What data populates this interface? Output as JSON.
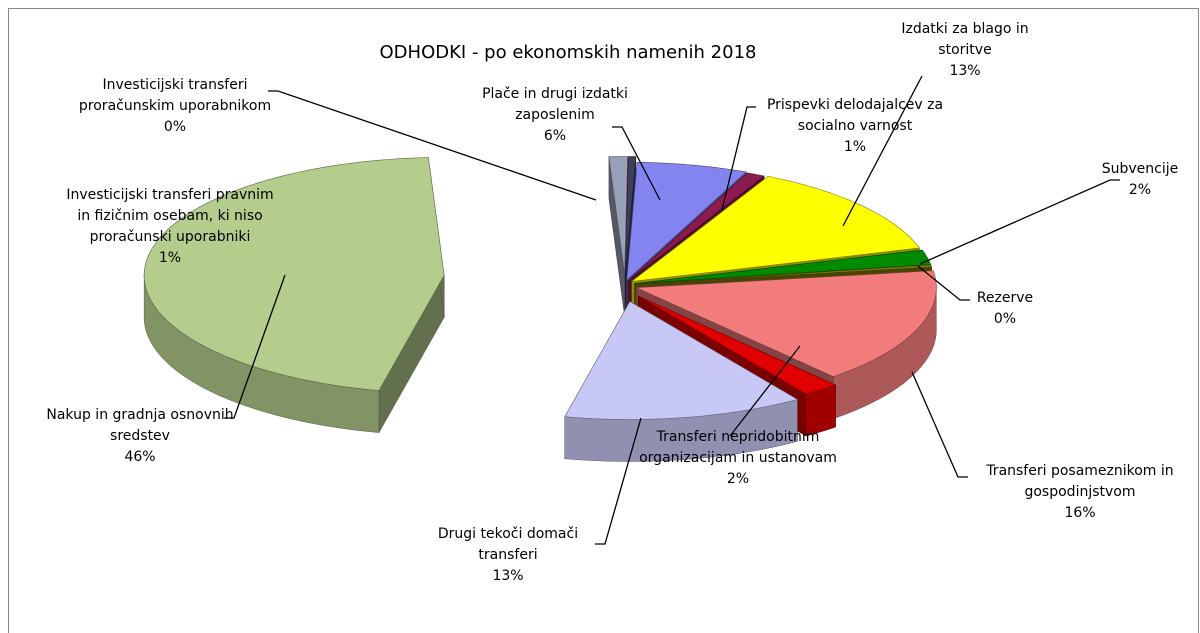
{
  "chart_data": {
    "type": "pie",
    "title": "ODHODKI - po ekonomskih namenih 2018",
    "categories": [
      "Plače in drugi izdatki zaposlenim",
      "Prispevki delodajalcev za socialno varnost",
      "Izdatki za blago in storitve",
      "Subvencije",
      "Rezerve",
      "Transferi posameznikom in gospodinjstvom",
      "Transferi nepridobitnim organizacijam in ustanovam",
      "Drugi tekoči domači transferi",
      "Nakup in gradnja osnovnih sredstev",
      "Investicijski transferi pravnim in fizičnim osebam, ki niso proračunski uporabniki",
      "Investicijski transferi proračunskim uporabnikom"
    ],
    "values": [
      6,
      1,
      13,
      2,
      0.3,
      16,
      2,
      13,
      46,
      1,
      0.4
    ],
    "value_labels": [
      "6%",
      "1%",
      "13%",
      "2%",
      "0%",
      "16%",
      "2%",
      "13%",
      "46%",
      "1%",
      "0%"
    ],
    "colors": [
      "#8484f0",
      "#8c1c50",
      "#ffff00",
      "#008a00",
      "#808000",
      "#f27c7c",
      "#e00000",
      "#c8c8f6",
      "#b4cc8c",
      "#9aa0b8",
      "#40405e"
    ]
  }
}
